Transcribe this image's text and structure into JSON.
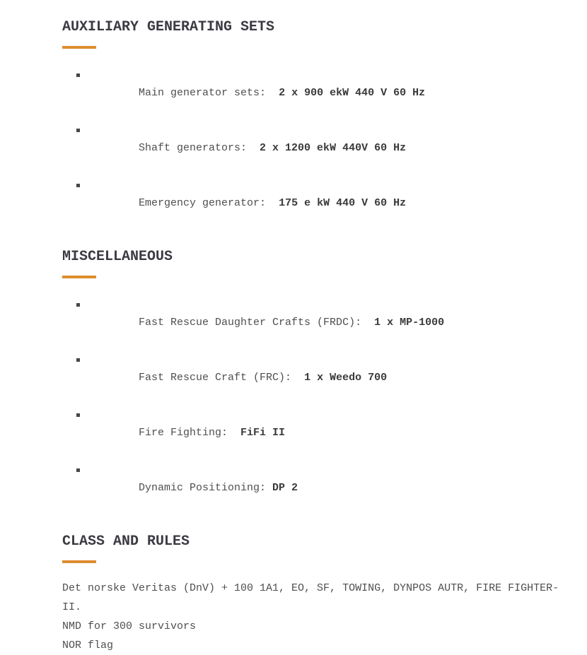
{
  "theme": {
    "accent_color": "#dd8e2e",
    "heading_color": "#3a3a42",
    "body_text_color": "#4f4f4f"
  },
  "sections": [
    {
      "title": "AUXILIARY GENERATING SETS",
      "items": [
        {
          "label": "Main generator sets:  ",
          "value": "2 x 900 ekW 440 V 60 Hz"
        },
        {
          "label": "Shaft generators:  ",
          "value": "2 x 1200 ekW 440V 60 Hz"
        },
        {
          "label": "Emergency generator:  ",
          "value": "175 e kW 440 V 60 Hz"
        }
      ]
    },
    {
      "title": "MISCELLANEOUS",
      "items": [
        {
          "label": "Fast Rescue Daughter Crafts (FRDC):  ",
          "value": "1 x MP-1000"
        },
        {
          "label": "Fast Rescue Craft (FRC):  ",
          "value": "1 x Weedo 700"
        },
        {
          "label": "Fire Fighting:  ",
          "value": "FiFi II"
        },
        {
          "label": "Dynamic Positioning: ",
          "value": "DP 2"
        }
      ]
    },
    {
      "title": "CLASS AND RULES",
      "paragraphs": [
        "Det norske Veritas (DnV) + 100 1A1, EO, SF, TOWING, DYNPOS AUTR, FIRE FIGHTER-II.",
        "NMD for 300 survivors",
        "NOR flag"
      ]
    }
  ]
}
